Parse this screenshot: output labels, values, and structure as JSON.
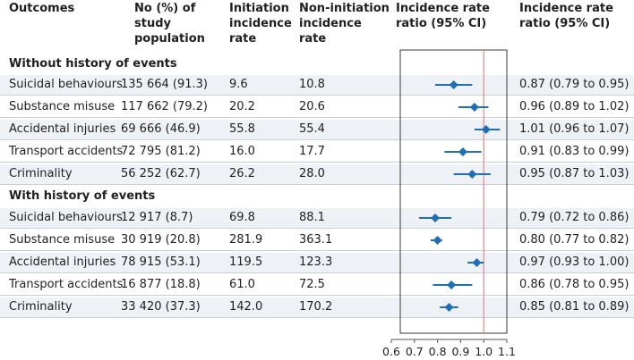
{
  "headers": {
    "outcomes": "Outcomes",
    "no_study": [
      "No (%) of",
      "study",
      "population"
    ],
    "initiation": [
      "Initiation",
      "incidence",
      "rate"
    ],
    "non_initiation": [
      "Non-initiation",
      "incidence",
      "rate"
    ],
    "forest": [
      "Incidence rate",
      "ratio (95% CI)"
    ],
    "irr_text": [
      "Incidence rate",
      "ratio (95% CI)"
    ]
  },
  "groups": [
    {
      "title": "Without history of events",
      "rows": [
        {
          "outcome": "Suicidal behaviours",
          "n": "135 664 (91.3)",
          "initiation": "9.6",
          "non_initiation": "10.8",
          "irr_text": "0.87 (0.79 to 0.95)"
        },
        {
          "outcome": "Substance misuse",
          "n": "117 662 (79.2)",
          "initiation": "20.2",
          "non_initiation": "20.6",
          "irr_text": "0.96 (0.89 to 1.02)"
        },
        {
          "outcome": "Accidental injuries",
          "n": "69 666 (46.9)",
          "initiation": "55.8",
          "non_initiation": "55.4",
          "irr_text": "1.01 (0.96 to 1.07)"
        },
        {
          "outcome": "Transport accidents",
          "n": "72 795 (81.2)",
          "initiation": "16.0",
          "non_initiation": "17.7",
          "irr_text": "0.91 (0.83 to 0.99)"
        },
        {
          "outcome": "Criminality",
          "n": "56 252 (62.7)",
          "initiation": "26.2",
          "non_initiation": "28.0",
          "irr_text": "0.95 (0.87 to 1.03)"
        }
      ]
    },
    {
      "title": "With history of events",
      "rows": [
        {
          "outcome": "Suicidal behaviours",
          "n": "12 917 (8.7)",
          "initiation": "69.8",
          "non_initiation": "88.1",
          "irr_text": "0.79 (0.72 to 0.86)"
        },
        {
          "outcome": "Substance misuse",
          "n": "30 919 (20.8)",
          "initiation": "281.9",
          "non_initiation": "363.1",
          "irr_text": "0.80 (0.77 to 0.82)"
        },
        {
          "outcome": "Accidental injuries",
          "n": "78 915 (53.1)",
          "initiation": "119.5",
          "non_initiation": "123.3",
          "irr_text": "0.97 (0.93 to 1.00)"
        },
        {
          "outcome": "Transport accidents",
          "n": "16 877 (18.8)",
          "initiation": "61.0",
          "non_initiation": "72.5",
          "irr_text": "0.86 (0.78 to 0.95)"
        },
        {
          "outcome": "Criminality",
          "n": "33 420 (37.3)",
          "initiation": "142.0",
          "non_initiation": "170.2",
          "irr_text": "0.85 (0.81 to 0.89)"
        }
      ]
    }
  ],
  "chart_data": {
    "type": "forest",
    "title": "Incidence rate ratio (95% CI)",
    "xlim": [
      0.6,
      1.1
    ],
    "xticks": [
      "0.6",
      "0.7",
      "0.8",
      "0.9",
      "1.0",
      "1.1"
    ],
    "reference_line": 1.0,
    "series": [
      {
        "name": "Without history of events",
        "points": [
          {
            "label": "Suicidal behaviours",
            "estimate": 0.87,
            "lower": 0.79,
            "upper": 0.95
          },
          {
            "label": "Substance misuse",
            "estimate": 0.96,
            "lower": 0.89,
            "upper": 1.02
          },
          {
            "label": "Accidental injuries",
            "estimate": 1.01,
            "lower": 0.96,
            "upper": 1.07
          },
          {
            "label": "Transport accidents",
            "estimate": 0.91,
            "lower": 0.83,
            "upper": 0.99
          },
          {
            "label": "Criminality",
            "estimate": 0.95,
            "lower": 0.87,
            "upper": 1.03
          }
        ]
      },
      {
        "name": "With history of events",
        "points": [
          {
            "label": "Suicidal behaviours",
            "estimate": 0.79,
            "lower": 0.72,
            "upper": 0.86
          },
          {
            "label": "Substance misuse",
            "estimate": 0.8,
            "lower": 0.77,
            "upper": 0.82
          },
          {
            "label": "Accidental injuries",
            "estimate": 0.97,
            "lower": 0.93,
            "upper": 1.0
          },
          {
            "label": "Transport accidents",
            "estimate": 0.86,
            "lower": 0.78,
            "upper": 0.95
          },
          {
            "label": "Criminality",
            "estimate": 0.85,
            "lower": 0.81,
            "upper": 0.89
          }
        ]
      }
    ],
    "colors": {
      "marker": "#1f6fb5",
      "reference": "#e08a8a",
      "frame": "#3a3a3a",
      "row_shade": "#eef1f6"
    }
  }
}
